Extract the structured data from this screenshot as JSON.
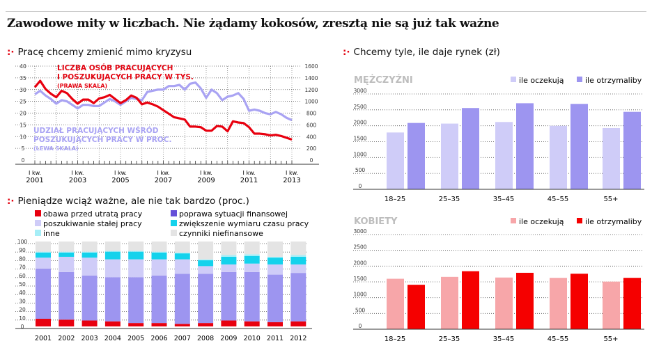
{
  "title": "Zawodowe mity w liczbach. Nie żądamy kokosów, zresztą nie są już tak ważne",
  "sections": {
    "line": "Pracę chcemy zmienić mimo kryzysu",
    "stacked": "Pieniądze wciąż ważne, ale nie tak bardzo (proc.)",
    "salary": "Chcemy tyle, ile daje rynek (zł)"
  },
  "colors": {
    "accent": "#e30613",
    "purple_line": "#a9a3f3",
    "red_line": "#e8000f"
  },
  "chart_data": [
    {
      "type": "line",
      "title": "Pracę chcemy zmienić mimo kryzysu",
      "x_ticks": [
        [
          "I kw.",
          "2001"
        ],
        [
          "I kw.",
          "2003"
        ],
        [
          "I kw.",
          "2005"
        ],
        [
          "I kw.",
          "2007"
        ],
        [
          "I kw.",
          "2009"
        ],
        [
          "I kw.",
          "2011"
        ],
        [
          "I kw.",
          "2013"
        ]
      ],
      "x_range": [
        "2001 Q1",
        "2013 Q1"
      ],
      "left_axis": {
        "ticks": [
          0,
          5,
          10,
          15,
          20,
          25,
          30,
          35,
          40
        ],
        "ylim": [
          0,
          40
        ]
      },
      "right_axis": {
        "ticks": [
          0,
          200,
          400,
          600,
          800,
          1000,
          1200,
          1400,
          1600
        ],
        "ylim": [
          0,
          1600
        ]
      },
      "grid": true,
      "series": [
        {
          "name": "LICZBA OSÓB PRACUJĄCYCH I POSZUKUJĄCYCH PRACY W TYS.",
          "note": "(PRAWA SKALA)",
          "axis": "right",
          "color": "#e8000f",
          "values": [
            1240,
            1350,
            1210,
            1130,
            1070,
            1180,
            1140,
            1040,
            960,
            1030,
            1030,
            970,
            1050,
            1070,
            1110,
            1040,
            970,
            1020,
            1100,
            1060,
            950,
            980,
            950,
            910,
            850,
            790,
            730,
            710,
            690,
            570,
            570,
            560,
            500,
            500,
            580,
            570,
            490,
            660,
            640,
            630,
            560,
            450,
            450,
            440,
            420,
            430,
            410,
            380,
            350
          ]
        },
        {
          "name": "UDZIAŁ PRACUJĄCYCH WŚRÓD POSZUKUJĄCYCH PRACY W PROC.",
          "note": "(LEWA SKALA)",
          "axis": "left",
          "color": "#a9a3f3",
          "values": [
            28,
            29.5,
            27.5,
            26,
            24,
            25.5,
            25,
            23.5,
            22,
            23.5,
            23.5,
            23,
            23,
            24.5,
            26,
            25,
            23.5,
            25,
            26.5,
            26,
            25.5,
            29,
            29.5,
            30,
            30,
            31.5,
            31.5,
            32,
            30,
            32.5,
            33,
            30.5,
            26.5,
            30,
            28.5,
            25.5,
            27,
            27.5,
            28.5,
            26,
            21,
            21.5,
            21,
            20,
            19.5,
            20.5,
            19.5,
            18,
            17
          ]
        }
      ]
    },
    {
      "type": "bar",
      "stacked": true,
      "title": "Pieniądze wciąż ważne, ale nie tak bardzo (proc.)",
      "categories": [
        "2001",
        "2002",
        "2003",
        "2004",
        "2005",
        "2006",
        "2007",
        "2008",
        "2009",
        "2010",
        "2011",
        "2012"
      ],
      "ylim": [
        0,
        100
      ],
      "y_ticks": [
        0,
        10,
        20,
        30,
        40,
        50,
        60,
        70,
        80,
        90,
        100
      ],
      "grid": true,
      "legend": "top",
      "series": [
        {
          "name": "obawa przed utratą pracy",
          "color": "#e8000f",
          "legend_color": "#e8000f",
          "values": [
            9,
            8,
            7,
            6,
            4,
            4,
            3,
            4,
            7,
            6,
            5,
            6
          ]
        },
        {
          "name": "poprawa sytuacji finansowej",
          "color": "#9d95f0",
          "legend_color": "#6650d8",
          "values": [
            59,
            56,
            53,
            52,
            54,
            56,
            59,
            58,
            57,
            58,
            56,
            57
          ]
        },
        {
          "name": "poszukiwanie stałej pracy",
          "color": "#cfccf8",
          "legend_color": "#cfccf8",
          "values": [
            13,
            18,
            21,
            21,
            21,
            19,
            17,
            9,
            9,
            10,
            12,
            10
          ]
        },
        {
          "name": "zwiększenie wymiaru czasu pracy",
          "color": "#14d2ec",
          "legend_color": "#14d2ec",
          "values": [
            6,
            5,
            6,
            9,
            9,
            8,
            7,
            7,
            9,
            9,
            8,
            9
          ]
        },
        {
          "name": "inne",
          "color": "#a6eef7",
          "legend_color": "#a6eef7",
          "values": [
            1,
            1,
            1,
            1,
            1,
            1,
            1,
            1,
            2,
            2,
            1,
            2
          ]
        },
        {
          "name": "czynniki niefinansowe",
          "color": "#e4e4e4",
          "legend_color": "#e4e4e4",
          "values": [
            12,
            12,
            12,
            11,
            11,
            12,
            13,
            21,
            16,
            15,
            18,
            16
          ]
        }
      ]
    },
    {
      "type": "bar",
      "title": "MĘŻCZYŹNI",
      "categories": [
        "18–25",
        "25–35",
        "35–45",
        "45–55",
        "55+"
      ],
      "ylim": [
        0,
        3000
      ],
      "y_ticks": [
        0,
        500,
        1000,
        1500,
        2000,
        2500,
        3000
      ],
      "grid": true,
      "legend": "top-right",
      "series": [
        {
          "name": "ile oczekują",
          "color": "#cfccf8",
          "values": [
            1700,
            1980,
            2030,
            1910,
            1840
          ]
        },
        {
          "name": "ile otrzymaliby",
          "color": "#9d95f0",
          "values": [
            2000,
            2470,
            2620,
            2600,
            2350
          ]
        }
      ]
    },
    {
      "type": "bar",
      "title": "KOBIETY",
      "categories": [
        "18–25",
        "25–35",
        "35–45",
        "45–55",
        "55+"
      ],
      "ylim": [
        0,
        3000
      ],
      "y_ticks": [
        0,
        500,
        1000,
        1500,
        2000,
        2500,
        3000
      ],
      "grid": true,
      "legend": "top-right",
      "series": [
        {
          "name": "ile oczekują",
          "color": "#f7a6a9",
          "values": [
            1510,
            1570,
            1550,
            1540,
            1420
          ]
        },
        {
          "name": "ile otrzymaliby",
          "color": "#f50000",
          "values": [
            1320,
            1750,
            1700,
            1670,
            1540
          ]
        }
      ]
    }
  ]
}
